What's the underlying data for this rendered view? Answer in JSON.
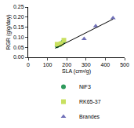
{
  "chart_data": {
    "type": "scatter",
    "x_label": "SLA (cm²/g)",
    "y_label": "RGR (g/g/day)",
    "xlim": [
      0,
      500
    ],
    "xticks": [
      0,
      100,
      200,
      300,
      400,
      500
    ],
    "ylim": [
      0,
      0.25
    ],
    "yticks": [
      {
        "value": 0,
        "label": "0.00"
      },
      {
        "value": 0.05,
        "label": "0.05"
      },
      {
        "value": 0.1,
        "label": "0.10"
      },
      {
        "value": 0.15,
        "label": "0.15"
      },
      {
        "value": 0.2,
        "label": "0.20"
      },
      {
        "value": 0.25,
        "label": "0.25"
      }
    ],
    "grid": false,
    "legend": "bottom",
    "series": [
      {
        "name": "NiF3",
        "color": "#2e9a5c",
        "marker": "circle",
        "type": "scatter",
        "x": [
          150,
          165,
          180
        ],
        "values": [
          0.058,
          0.063,
          0.075
        ]
      },
      {
        "name": "RK65-37",
        "color": "#c8e060",
        "marker": "square",
        "type": "scatter",
        "x": [
          150,
          170,
          185
        ],
        "values": [
          0.065,
          0.068,
          0.085
        ]
      },
      {
        "name": "Brandes",
        "color": "#7070b8",
        "marker": "triangle-up",
        "type": "scatter",
        "x": [
          290,
          350,
          440
        ],
        "values": [
          0.092,
          0.155,
          0.195
        ]
      },
      {
        "color": "#000000",
        "type": "line",
        "line_style": "solid",
        "x": [
          140,
          440
        ],
        "values": [
          0.045,
          0.19
        ]
      }
    ]
  }
}
